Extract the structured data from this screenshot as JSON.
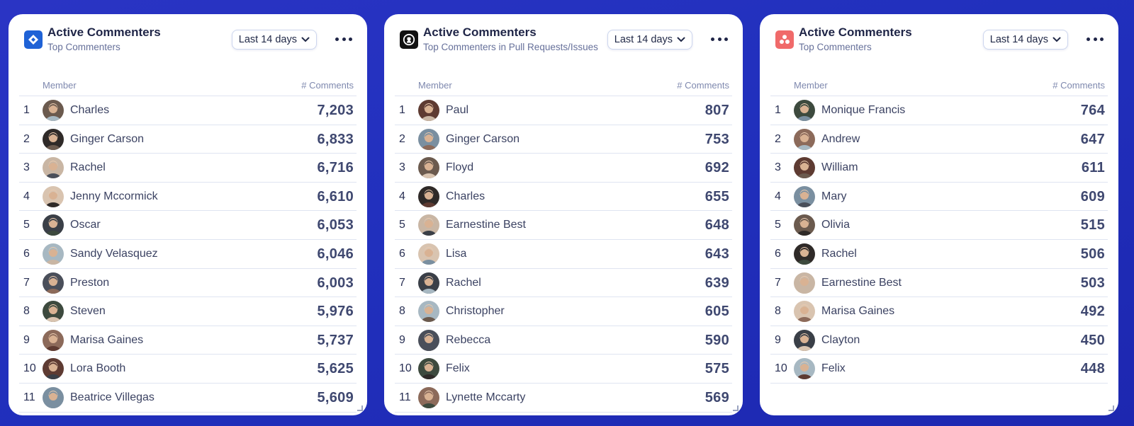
{
  "cards": [
    {
      "icon": "jira-diamond-icon",
      "icon_color": "#1f62d6",
      "title": "Active Commenters",
      "subtitle": "Top Commenters",
      "range_label": "Last 14 days",
      "col_member": "Member",
      "col_comments": "# Comments",
      "rows": [
        {
          "rank": "1",
          "name": "Charles",
          "count": "7,203"
        },
        {
          "rank": "2",
          "name": "Ginger Carson",
          "count": "6,833"
        },
        {
          "rank": "3",
          "name": "Rachel",
          "count": "6,716"
        },
        {
          "rank": "4",
          "name": "Jenny Mccormick",
          "count": "6,610"
        },
        {
          "rank": "5",
          "name": "Oscar",
          "count": "6,053"
        },
        {
          "rank": "6",
          "name": "Sandy Velasquez",
          "count": "6,046"
        },
        {
          "rank": "7",
          "name": "Preston",
          "count": "6,003"
        },
        {
          "rank": "8",
          "name": "Steven",
          "count": "5,976"
        },
        {
          "rank": "9",
          "name": "Marisa Gaines",
          "count": "5,737"
        },
        {
          "rank": "10",
          "name": "Lora Booth",
          "count": "5,625"
        },
        {
          "rank": "11",
          "name": "Beatrice Villegas",
          "count": "5,609"
        }
      ]
    },
    {
      "icon": "github-octocat-icon",
      "icon_color": "#111111",
      "title": "Active Commenters",
      "subtitle": "Top Commenters in Pull Requests/Issues",
      "range_label": "Last 14 days",
      "col_member": "Member",
      "col_comments": "# Comments",
      "rows": [
        {
          "rank": "1",
          "name": "Paul",
          "count": "807"
        },
        {
          "rank": "2",
          "name": "Ginger Carson",
          "count": "753"
        },
        {
          "rank": "3",
          "name": "Floyd",
          "count": "692"
        },
        {
          "rank": "4",
          "name": "Charles",
          "count": "655"
        },
        {
          "rank": "5",
          "name": "Earnestine Best",
          "count": "648"
        },
        {
          "rank": "6",
          "name": "Lisa",
          "count": "643"
        },
        {
          "rank": "7",
          "name": "Rachel",
          "count": "639"
        },
        {
          "rank": "8",
          "name": "Christopher",
          "count": "605"
        },
        {
          "rank": "9",
          "name": "Rebecca",
          "count": "590"
        },
        {
          "rank": "10",
          "name": "Felix",
          "count": "575"
        },
        {
          "rank": "11",
          "name": "Lynette Mccarty",
          "count": "569"
        }
      ]
    },
    {
      "icon": "asana-dots-icon",
      "icon_color": "#f06a6a",
      "title": "Active Commenters",
      "subtitle": "Top Commenters",
      "range_label": "Last 14 days",
      "col_member": "Member",
      "col_comments": "# Comments",
      "rows": [
        {
          "rank": "1",
          "name": "Monique Francis",
          "count": "764"
        },
        {
          "rank": "2",
          "name": "Andrew",
          "count": "647"
        },
        {
          "rank": "3",
          "name": "William",
          "count": "611"
        },
        {
          "rank": "4",
          "name": "Mary",
          "count": "609"
        },
        {
          "rank": "5",
          "name": "Olivia",
          "count": "515"
        },
        {
          "rank": "6",
          "name": "Rachel",
          "count": "506"
        },
        {
          "rank": "7",
          "name": "Earnestine Best",
          "count": "503"
        },
        {
          "rank": "8",
          "name": "Marisa Gaines",
          "count": "492"
        },
        {
          "rank": "9",
          "name": "Clayton",
          "count": "450"
        },
        {
          "rank": "10",
          "name": "Felix",
          "count": "448"
        }
      ]
    }
  ],
  "avatar_palette": [
    "#6b5a4e",
    "#3a3f47",
    "#8c6a5a",
    "#2f2a28",
    "#a7b8c2",
    "#5e3b32",
    "#c9b6a4",
    "#4a4f5a",
    "#7a8fa0",
    "#d9c4b0",
    "#3d4a3e"
  ]
}
